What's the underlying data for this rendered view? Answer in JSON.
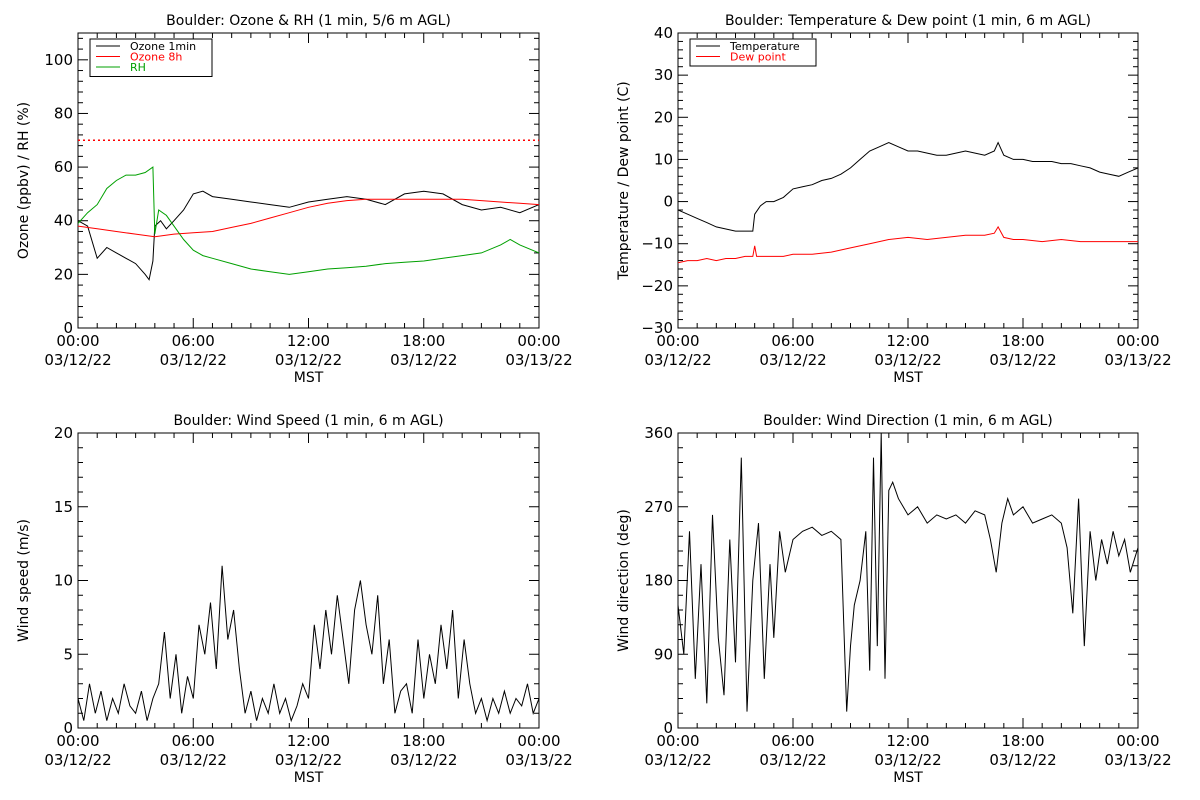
{
  "chart_data": [
    {
      "type": "line",
      "title": "Boulder: Ozone & RH (1 min, 5/6 m AGL)",
      "xlabel": "MST",
      "ylabel": "Ozone (ppbv) / RH (%)",
      "ylim": [
        0,
        110
      ],
      "yticks": [
        "0",
        "20",
        "40",
        "60",
        "80",
        "100"
      ],
      "ytick_values": [
        0,
        20,
        40,
        60,
        80,
        100
      ],
      "xlim": [
        0,
        24
      ],
      "xticks": [
        {
          "time": "00:00",
          "date": "03/12/22"
        },
        {
          "time": "06:00",
          "date": "03/12/22"
        },
        {
          "time": "12:00",
          "date": "03/12/22"
        },
        {
          "time": "18:00",
          "date": "03/12/22"
        },
        {
          "time": "00:00",
          "date": "03/13/22"
        }
      ],
      "legend_position": "top-left",
      "reference_line": {
        "y": 70,
        "color": "#ff0000",
        "style": "dotted"
      },
      "series": [
        {
          "name": "Ozone 1min",
          "color": "#000000",
          "x": [
            0,
            0.5,
            1,
            1.5,
            2,
            2.5,
            3,
            3.5,
            3.7,
            3.9,
            4,
            4.3,
            4.6,
            5,
            5.5,
            6,
            6.5,
            7,
            8,
            9,
            10,
            11,
            12,
            13,
            14,
            15,
            16,
            17,
            18,
            19,
            20,
            21,
            22,
            23,
            24
          ],
          "y": [
            40,
            38,
            26,
            30,
            28,
            26,
            24,
            20,
            18,
            25,
            38,
            40,
            37,
            40,
            44,
            50,
            51,
            49,
            48,
            47,
            46,
            45,
            47,
            48,
            49,
            48,
            46,
            50,
            51,
            50,
            46,
            44,
            45,
            43,
            46
          ]
        },
        {
          "name": "Ozone 8h",
          "color": "#ff0000",
          "x": [
            0,
            1,
            2,
            3,
            4,
            5,
            6,
            7,
            8,
            9,
            10,
            11,
            12,
            13,
            14,
            15,
            16,
            17,
            18,
            19,
            20,
            21,
            22,
            23,
            24
          ],
          "y": [
            38,
            37,
            36,
            35,
            34,
            35,
            35.5,
            36,
            37.5,
            39,
            41,
            43,
            45,
            46.5,
            47.5,
            48,
            48,
            48,
            48,
            48,
            48,
            47.5,
            47,
            46.5,
            46
          ]
        },
        {
          "name": "RH",
          "color": "#00a000",
          "x": [
            0,
            0.5,
            1,
            1.5,
            2,
            2.5,
            3,
            3.5,
            3.9,
            4,
            4.2,
            4.6,
            5,
            5.5,
            6,
            6.5,
            7,
            8,
            9,
            10,
            11,
            12,
            13,
            14,
            15,
            16,
            17,
            18,
            19,
            20,
            21,
            22,
            22.5,
            23,
            24
          ],
          "y": [
            39,
            43,
            46,
            52,
            55,
            57,
            57,
            58,
            60,
            35,
            44,
            42,
            38,
            33,
            29,
            27,
            26,
            24,
            22,
            21,
            20,
            21,
            22,
            22.5,
            23,
            24,
            24.5,
            25,
            26,
            27,
            28,
            31,
            33,
            31,
            28
          ]
        }
      ]
    },
    {
      "type": "line",
      "title": "Boulder: Temperature & Dew point (1 min, 6 m AGL)",
      "xlabel": "MST",
      "ylabel": "Temperature / Dew point (C)",
      "ylim": [
        -30,
        40
      ],
      "yticks": [
        "−30",
        "−20",
        "−10",
        "0",
        "10",
        "20",
        "30",
        "40"
      ],
      "ytick_values": [
        -30,
        -20,
        -10,
        0,
        10,
        20,
        30,
        40
      ],
      "xlim": [
        0,
        24
      ],
      "xticks": [
        {
          "time": "00:00",
          "date": "03/12/22"
        },
        {
          "time": "06:00",
          "date": "03/12/22"
        },
        {
          "time": "12:00",
          "date": "03/12/22"
        },
        {
          "time": "18:00",
          "date": "03/12/22"
        },
        {
          "time": "00:00",
          "date": "03/13/22"
        }
      ],
      "legend_position": "top-left",
      "series": [
        {
          "name": "Temperature",
          "color": "#000000",
          "x": [
            0,
            0.5,
            1,
            1.5,
            2,
            2.5,
            3,
            3.5,
            3.9,
            4,
            4.3,
            4.6,
            5,
            5.5,
            6,
            6.5,
            7,
            7.5,
            8,
            8.5,
            9,
            9.5,
            10,
            10.5,
            11,
            11.5,
            12,
            12.5,
            13,
            13.5,
            14,
            14.5,
            15,
            15.5,
            16,
            16.5,
            16.7,
            17,
            17.5,
            18,
            18.5,
            19,
            19.5,
            20,
            20.5,
            21,
            21.5,
            22,
            22.5,
            23,
            23.5,
            24
          ],
          "y": [
            -2,
            -3,
            -4,
            -5,
            -6,
            -6.5,
            -7,
            -7,
            -7,
            -3,
            -1,
            0,
            0,
            1,
            3,
            3.5,
            4,
            5,
            5.5,
            6.5,
            8,
            10,
            12,
            13,
            14,
            13,
            12,
            12,
            11.5,
            11,
            11,
            11.5,
            12,
            11.5,
            11,
            12,
            14,
            11,
            10,
            10,
            9.5,
            9.5,
            9.5,
            9,
            9,
            8.5,
            8,
            7,
            6.5,
            6,
            7,
            8
          ]
        },
        {
          "name": "Dew point",
          "color": "#ff0000",
          "x": [
            0,
            0.5,
            1,
            1.5,
            2,
            2.5,
            3,
            3.5,
            3.9,
            4,
            4.1,
            4.5,
            5,
            5.5,
            6,
            7,
            8,
            9,
            10,
            11,
            12,
            13,
            14,
            15,
            16,
            16.5,
            16.7,
            17,
            17.5,
            18,
            19,
            20,
            21,
            22,
            23,
            24
          ],
          "y": [
            -14.5,
            -14,
            -14,
            -13.5,
            -14,
            -13.5,
            -13.5,
            -13,
            -13,
            -10.5,
            -13,
            -13,
            -13,
            -13,
            -12.5,
            -12.5,
            -12,
            -11,
            -10,
            -9,
            -8.5,
            -9,
            -8.5,
            -8,
            -8,
            -7.5,
            -6,
            -8.5,
            -9,
            -9,
            -9.5,
            -9,
            -9.5,
            -9.5,
            -9.5,
            -9.5
          ]
        }
      ]
    },
    {
      "type": "line",
      "title": "Boulder: Wind Speed (1 min, 6 m AGL)",
      "xlabel": "MST",
      "ylabel": "Wind speed (m/s)",
      "ylim": [
        0,
        20
      ],
      "yticks": [
        "0",
        "5",
        "10",
        "15",
        "20"
      ],
      "ytick_values": [
        0,
        5,
        10,
        15,
        20
      ],
      "xlim": [
        0,
        24
      ],
      "xticks": [
        {
          "time": "00:00",
          "date": "03/12/22"
        },
        {
          "time": "06:00",
          "date": "03/12/22"
        },
        {
          "time": "12:00",
          "date": "03/12/22"
        },
        {
          "time": "18:00",
          "date": "03/12/22"
        },
        {
          "time": "00:00",
          "date": "03/13/22"
        }
      ],
      "series": [
        {
          "name": "",
          "color": "#000000",
          "x": [
            0,
            0.3,
            0.6,
            0.9,
            1.2,
            1.5,
            1.8,
            2.1,
            2.4,
            2.7,
            3,
            3.3,
            3.6,
            3.9,
            4.2,
            4.5,
            4.8,
            5.1,
            5.4,
            5.7,
            6,
            6.3,
            6.6,
            6.9,
            7.2,
            7.5,
            7.8,
            8.1,
            8.4,
            8.7,
            9,
            9.3,
            9.6,
            9.9,
            10.2,
            10.5,
            10.8,
            11.1,
            11.4,
            11.7,
            12,
            12.3,
            12.6,
            12.9,
            13.2,
            13.5,
            13.8,
            14.1,
            14.4,
            14.7,
            15,
            15.3,
            15.6,
            15.9,
            16.2,
            16.5,
            16.8,
            17.1,
            17.4,
            17.7,
            18,
            18.3,
            18.6,
            18.9,
            19.2,
            19.5,
            19.8,
            20.1,
            20.4,
            20.7,
            21,
            21.3,
            21.6,
            21.9,
            22.2,
            22.5,
            22.8,
            23.1,
            23.4,
            23.7,
            24
          ],
          "y": [
            2,
            0.5,
            3,
            1,
            2.5,
            0.5,
            2,
            1,
            3,
            1.5,
            1,
            2.5,
            0.5,
            2,
            3,
            6.5,
            2,
            5,
            1,
            3.5,
            2,
            7,
            5,
            8.5,
            4,
            11,
            6,
            8,
            4,
            1,
            2.5,
            0.5,
            2,
            1,
            3,
            1,
            2,
            0.5,
            1.5,
            3,
            2,
            7,
            4,
            8,
            5,
            9,
            6,
            3,
            8,
            10,
            7,
            5,
            9,
            3,
            6,
            1,
            2.5,
            3,
            1,
            6,
            2,
            5,
            3,
            7,
            4,
            8,
            2,
            6,
            3,
            1,
            2,
            0.5,
            2,
            1,
            2.5,
            1,
            2,
            1.5,
            3,
            1,
            2
          ]
        }
      ]
    },
    {
      "type": "line",
      "title": "Boulder: Wind Direction (1 min, 6 m AGL)",
      "xlabel": "MST",
      "ylabel": "Wind direction (deg)",
      "ylim": [
        0,
        360
      ],
      "yticks": [
        "0",
        "90",
        "180",
        "270",
        "360"
      ],
      "ytick_values": [
        0,
        90,
        180,
        270,
        360
      ],
      "xlim": [
        0,
        24
      ],
      "xticks": [
        {
          "time": "00:00",
          "date": "03/12/22"
        },
        {
          "time": "06:00",
          "date": "03/12/22"
        },
        {
          "time": "12:00",
          "date": "03/12/22"
        },
        {
          "time": "18:00",
          "date": "03/12/22"
        },
        {
          "time": "00:00",
          "date": "03/13/22"
        }
      ],
      "series": [
        {
          "name": "",
          "color": "#000000",
          "x": [
            0,
            0.3,
            0.6,
            0.9,
            1.2,
            1.5,
            1.8,
            2.1,
            2.4,
            2.7,
            3,
            3.3,
            3.6,
            3.9,
            4.2,
            4.5,
            4.8,
            5,
            5.3,
            5.6,
            6,
            6.5,
            7,
            7.5,
            8,
            8.5,
            8.8,
            9,
            9.2,
            9.5,
            9.8,
            10,
            10.2,
            10.4,
            10.6,
            10.8,
            11,
            11.2,
            11.5,
            12,
            12.5,
            13,
            13.5,
            14,
            14.5,
            15,
            15.5,
            16,
            16.3,
            16.6,
            16.9,
            17.2,
            17.5,
            18,
            18.5,
            19,
            19.5,
            20,
            20.3,
            20.6,
            20.9,
            21.2,
            21.5,
            21.8,
            22.1,
            22.4,
            22.7,
            23,
            23.3,
            23.6,
            24
          ],
          "y": [
            150,
            90,
            240,
            60,
            200,
            30,
            260,
            110,
            40,
            230,
            80,
            330,
            20,
            180,
            250,
            60,
            200,
            110,
            240,
            190,
            230,
            240,
            245,
            235,
            240,
            230,
            20,
            100,
            150,
            180,
            240,
            70,
            330,
            100,
            360,
            60,
            290,
            300,
            280,
            260,
            270,
            250,
            260,
            255,
            260,
            250,
            265,
            260,
            230,
            190,
            250,
            280,
            260,
            270,
            250,
            255,
            260,
            250,
            220,
            140,
            280,
            100,
            240,
            180,
            230,
            200,
            240,
            210,
            230,
            190,
            220
          ]
        }
      ]
    }
  ]
}
